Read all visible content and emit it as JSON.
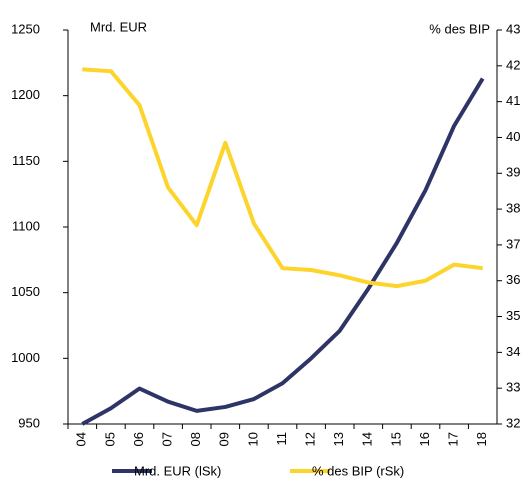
{
  "chart_data": {
    "type": "line",
    "y_label": "Mrd. EUR",
    "y2_label": "% des BIP",
    "categories": [
      "04",
      "05",
      "06",
      "07",
      "08",
      "09",
      "10",
      "11",
      "12",
      "13",
      "14",
      "15",
      "16",
      "17",
      "18"
    ],
    "series": [
      {
        "name": "Mrd. EUR (lSk)",
        "color": "#2e3566",
        "values": [
          950,
          962,
          977,
          967,
          960,
          963,
          969,
          981,
          1000,
          1021,
          1053,
          1088,
          1128,
          1177,
          1213
        ]
      },
      {
        "name": "% des BIP (rSk)",
        "color": "#fcd42b",
        "axis": "y2",
        "values": [
          41.9,
          41.85,
          40.9,
          38.6,
          37.55,
          39.85,
          37.6,
          36.35,
          36.3,
          36.15,
          35.95,
          35.85,
          36.0,
          36.45,
          36.35
        ]
      }
    ],
    "ylim": [
      950,
      1250
    ],
    "yticks": [
      950,
      1000,
      1050,
      1100,
      1150,
      1200,
      1250
    ],
    "y2lim": [
      32,
      43
    ],
    "y2ticks": [
      32,
      33,
      34,
      35,
      36,
      37,
      38,
      39,
      40,
      41,
      42,
      43
    ],
    "grid": false,
    "legend": "bottom"
  }
}
